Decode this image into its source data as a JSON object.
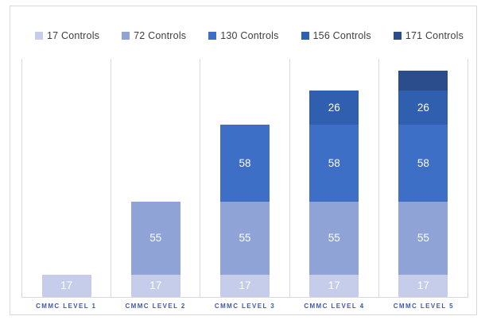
{
  "chart_data": {
    "type": "bar",
    "stacked": true,
    "title": "",
    "categories": [
      "CMMC LEVEL 1",
      "CMMC LEVEL 2",
      "CMMC LEVEL 3",
      "CMMC LEVEL 4",
      "CMMC LEVEL 5"
    ],
    "series": [
      {
        "name": "17 Controls",
        "color": "#c5cdea",
        "values": [
          17,
          17,
          17,
          17,
          17
        ],
        "show_labels": true
      },
      {
        "name": "72 Controls",
        "color": "#8fa3d7",
        "values": [
          0,
          55,
          55,
          55,
          55
        ],
        "show_labels": true
      },
      {
        "name": "130 Controls",
        "color": "#3d6fc7",
        "values": [
          0,
          0,
          58,
          58,
          58
        ],
        "show_labels": true
      },
      {
        "name": "156 Controls",
        "color": "#2f5fae",
        "values": [
          0,
          0,
          0,
          26,
          26
        ],
        "show_labels": true
      },
      {
        "name": "171 Controls",
        "color": "#2b4d8c",
        "values": [
          0,
          0,
          0,
          0,
          15
        ],
        "show_labels": false
      }
    ],
    "stack_totals": [
      17,
      72,
      130,
      156,
      171
    ],
    "ylim": [
      0,
      180
    ],
    "legend_position": "top",
    "legend_text_color": "#3f3f3f",
    "gridlines": "vertical-category-separators",
    "gridline_color": "#d9d9d9",
    "data_label_color": "#ffffff",
    "category_label_color": "#3e5ba9"
  }
}
